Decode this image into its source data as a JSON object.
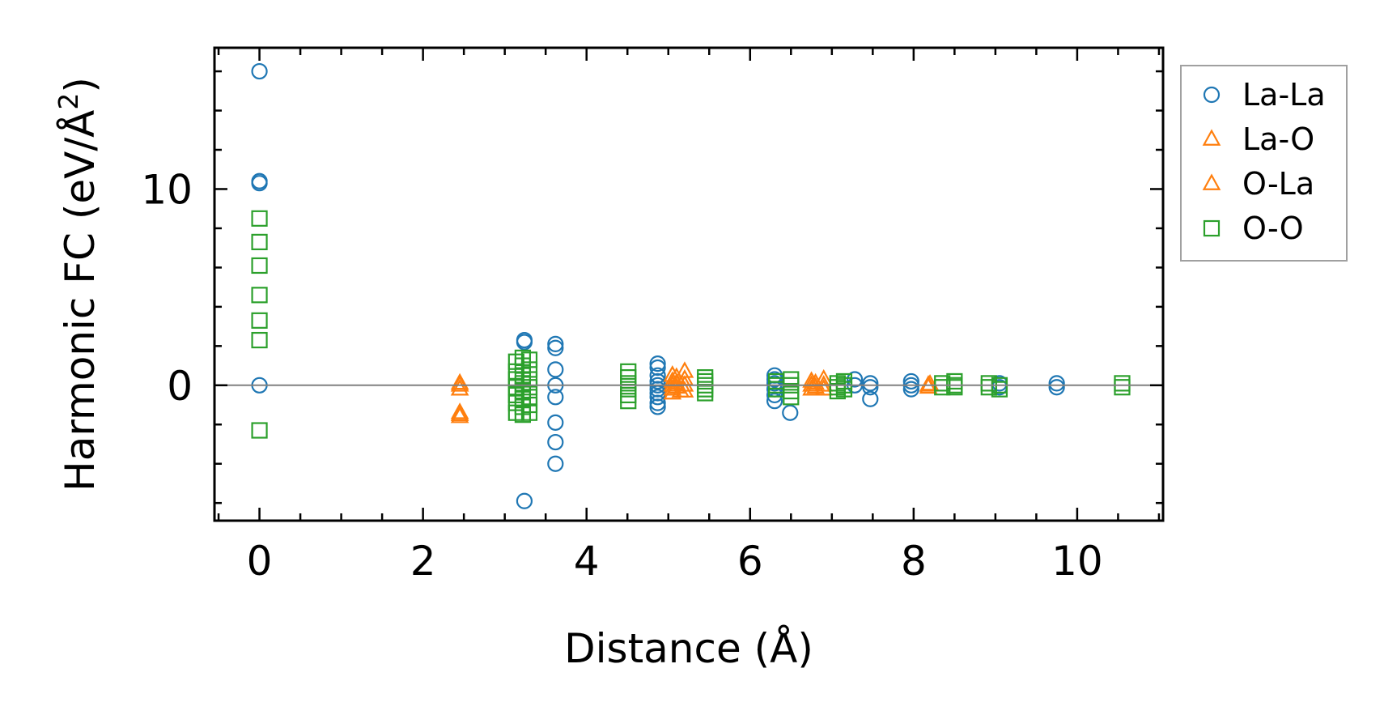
{
  "chart_data": {
    "type": "scatter",
    "xlabel": "Distance (Å)",
    "ylabel_main": "Harmonic FC (eV/Å",
    "ylabel_sup": "2",
    "ylabel_close": ")",
    "xlim": [
      -0.55,
      11.05
    ],
    "ylim": [
      -6.9,
      17.2
    ],
    "xticks": [
      0,
      2,
      4,
      6,
      8,
      10
    ],
    "xtick_labels": [
      "0",
      "2",
      "4",
      "6",
      "8",
      "10"
    ],
    "yticks": [
      0,
      10
    ],
    "ytick_labels": [
      "0",
      "10"
    ],
    "zero_line": true,
    "grid": false,
    "legend_position": "outside-right-top",
    "series": [
      {
        "name": "La-La",
        "marker": "circle",
        "color": "#1f77b4",
        "points": [
          [
            0,
            16.0
          ],
          [
            0,
            10.4
          ],
          [
            0,
            10.3
          ],
          [
            0,
            0.0
          ],
          [
            3.24,
            2.3
          ],
          [
            3.24,
            2.2
          ],
          [
            3.24,
            -5.9
          ],
          [
            3.62,
            2.1
          ],
          [
            3.62,
            1.9
          ],
          [
            3.62,
            0.8
          ],
          [
            3.62,
            0.0
          ],
          [
            3.62,
            -0.6
          ],
          [
            3.62,
            -1.9
          ],
          [
            3.62,
            -2.9
          ],
          [
            3.62,
            -4.0
          ],
          [
            4.87,
            1.1
          ],
          [
            4.87,
            0.9
          ],
          [
            4.87,
            0.5
          ],
          [
            4.87,
            0.2
          ],
          [
            4.87,
            0.0
          ],
          [
            4.87,
            -0.2
          ],
          [
            4.87,
            -0.4
          ],
          [
            4.87,
            -0.6
          ],
          [
            4.87,
            -0.9
          ],
          [
            4.87,
            -1.1
          ],
          [
            6.3,
            0.5
          ],
          [
            6.3,
            0.3
          ],
          [
            6.3,
            0.1
          ],
          [
            6.3,
            -0.2
          ],
          [
            6.3,
            -0.5
          ],
          [
            6.3,
            -0.8
          ],
          [
            6.49,
            -1.4
          ],
          [
            7.28,
            0.3
          ],
          [
            7.28,
            0.0
          ],
          [
            7.47,
            0.1
          ],
          [
            7.47,
            -0.1
          ],
          [
            7.47,
            -0.7
          ],
          [
            7.97,
            0.2
          ],
          [
            7.97,
            0.0
          ],
          [
            7.97,
            -0.2
          ],
          [
            9.05,
            0.1
          ],
          [
            9.05,
            -0.1
          ],
          [
            9.75,
            0.1
          ],
          [
            9.75,
            -0.1
          ]
        ]
      },
      {
        "name": "La-O",
        "marker": "triangle",
        "color": "#ff7f0e",
        "points": [
          [
            2.45,
            0.0
          ],
          [
            2.45,
            -0.2
          ],
          [
            2.45,
            -1.4
          ],
          [
            2.45,
            -1.6
          ],
          [
            5.05,
            0.5
          ],
          [
            5.05,
            0.2
          ],
          [
            5.05,
            0.0
          ],
          [
            5.05,
            -0.2
          ],
          [
            5.05,
            -0.4
          ],
          [
            5.2,
            0.7
          ],
          [
            5.2,
            0.3
          ],
          [
            5.2,
            0.0
          ],
          [
            5.2,
            -0.3
          ],
          [
            6.75,
            0.2
          ],
          [
            6.75,
            0.0
          ],
          [
            6.75,
            -0.2
          ],
          [
            6.9,
            0.3
          ],
          [
            6.9,
            0.0
          ],
          [
            6.9,
            -0.2
          ],
          [
            8.18,
            0.0
          ],
          [
            8.18,
            -0.1
          ]
        ]
      },
      {
        "name": "O-La",
        "marker": "triangle",
        "color": "#ff7f0e",
        "points": [
          [
            2.45,
            0.1
          ],
          [
            2.45,
            -1.5
          ],
          [
            5.1,
            0.4
          ],
          [
            5.1,
            0.1
          ],
          [
            5.1,
            -0.1
          ],
          [
            5.15,
            -0.3
          ],
          [
            6.8,
            0.1
          ],
          [
            6.8,
            -0.1
          ],
          [
            8.2,
            0.05
          ]
        ]
      },
      {
        "name": "O-O",
        "marker": "square",
        "color": "#2ca02c",
        "points": [
          [
            0,
            8.5
          ],
          [
            0,
            7.3
          ],
          [
            0,
            6.1
          ],
          [
            0,
            4.6
          ],
          [
            0,
            3.3
          ],
          [
            0,
            2.3
          ],
          [
            0,
            -2.3
          ],
          [
            3.14,
            1.2
          ],
          [
            3.14,
            0.7
          ],
          [
            3.14,
            0.3
          ],
          [
            3.14,
            -0.1
          ],
          [
            3.14,
            -0.5
          ],
          [
            3.14,
            -0.9
          ],
          [
            3.14,
            -1.4
          ],
          [
            3.22,
            1.4
          ],
          [
            3.22,
            1.0
          ],
          [
            3.22,
            0.5
          ],
          [
            3.22,
            0.1
          ],
          [
            3.22,
            -0.3
          ],
          [
            3.22,
            -0.7
          ],
          [
            3.22,
            -1.1
          ],
          [
            3.22,
            -1.5
          ],
          [
            3.3,
            1.3
          ],
          [
            3.3,
            0.8
          ],
          [
            3.3,
            0.3
          ],
          [
            3.3,
            -0.1
          ],
          [
            3.3,
            -0.6
          ],
          [
            3.3,
            -1.0
          ],
          [
            3.3,
            -1.4
          ],
          [
            4.51,
            0.7
          ],
          [
            4.51,
            0.4
          ],
          [
            4.51,
            0.1
          ],
          [
            4.51,
            -0.2
          ],
          [
            4.51,
            -0.5
          ],
          [
            4.51,
            -0.8
          ],
          [
            5.45,
            0.4
          ],
          [
            5.45,
            0.2
          ],
          [
            5.45,
            0.0
          ],
          [
            5.45,
            -0.2
          ],
          [
            5.45,
            -0.4
          ],
          [
            6.32,
            0.2
          ],
          [
            6.32,
            0.0
          ],
          [
            6.32,
            -0.2
          ],
          [
            6.5,
            0.3
          ],
          [
            6.5,
            0.0
          ],
          [
            6.5,
            -0.3
          ],
          [
            6.5,
            -0.6
          ],
          [
            7.07,
            0.1
          ],
          [
            7.07,
            -0.1
          ],
          [
            7.07,
            -0.3
          ],
          [
            7.15,
            0.2
          ],
          [
            7.15,
            0.0
          ],
          [
            7.15,
            -0.2
          ],
          [
            8.35,
            0.1
          ],
          [
            8.35,
            -0.1
          ],
          [
            8.5,
            0.2
          ],
          [
            8.5,
            0.0
          ],
          [
            8.5,
            -0.1
          ],
          [
            8.92,
            0.1
          ],
          [
            8.92,
            -0.1
          ],
          [
            9.05,
            0.0
          ],
          [
            9.05,
            -0.2
          ],
          [
            10.55,
            0.1
          ],
          [
            10.55,
            -0.1
          ]
        ]
      }
    ]
  }
}
